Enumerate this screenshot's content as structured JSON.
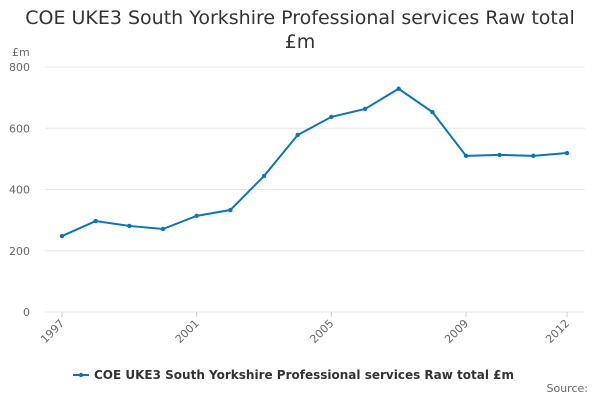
{
  "chart_data": {
    "type": "line",
    "title": "COE UKE3 South Yorkshire Professional services Raw total £m",
    "y_label": "£m",
    "source": "Source:",
    "x": [
      1997,
      1998,
      1999,
      2000,
      2001,
      2002,
      2003,
      2004,
      2005,
      2006,
      2007,
      2008,
      2009,
      2010,
      2011,
      2012
    ],
    "series": [
      {
        "name": "COE UKE3 South Yorkshire Professional services Raw total £m",
        "color": "#0f74b7",
        "values": [
          248,
          297,
          281,
          271,
          314,
          333,
          444,
          578,
          637,
          663,
          729,
          653,
          510,
          513,
          510,
          519
        ]
      }
    ],
    "xlim": [
      1997,
      2012
    ],
    "xticks": [
      1997,
      2001,
      2005,
      2009,
      2012
    ],
    "ylim": [
      0,
      800
    ],
    "yticks": [
      0,
      200,
      400,
      600,
      800
    ],
    "grid": true
  }
}
